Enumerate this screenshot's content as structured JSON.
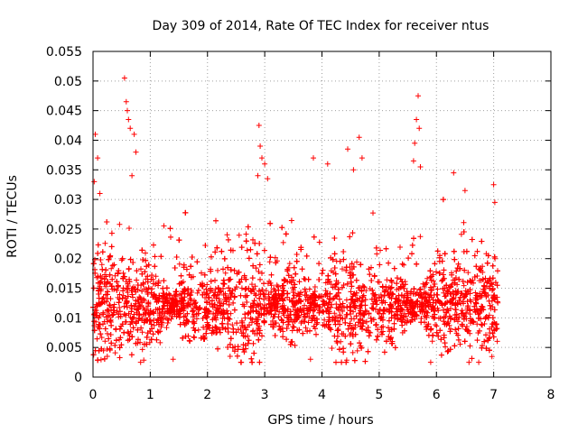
{
  "chart_data": {
    "type": "scatter",
    "title": "Day 309 of 2014, Rate Of TEC Index for receiver ntus",
    "xlabel": "GPS time / hours",
    "ylabel": "ROTI / TECUs",
    "xlim": [
      0,
      8
    ],
    "ylim": [
      0,
      0.055
    ],
    "xticks": [
      "0",
      "1",
      "2",
      "3",
      "4",
      "5",
      "6",
      "7",
      "8"
    ],
    "yticks": [
      "0",
      "0.005",
      "0.01",
      "0.015",
      "0.02",
      "0.025",
      "0.03",
      "0.035",
      "0.04",
      "0.045",
      "0.05",
      "0.055"
    ],
    "grid": true,
    "marker": "+",
    "color": "#ff0000",
    "series": [
      {
        "name": "ROTI",
        "x_range": [
          0,
          7.08
        ],
        "approx_points": 4500,
        "typical_range": [
          0.004,
          0.022
        ],
        "median": 0.012,
        "notable_points": [
          {
            "x": 0.02,
            "y": 0.033
          },
          {
            "x": 0.04,
            "y": 0.041
          },
          {
            "x": 0.08,
            "y": 0.037
          },
          {
            "x": 0.12,
            "y": 0.031
          },
          {
            "x": 0.55,
            "y": 0.0505
          },
          {
            "x": 0.58,
            "y": 0.0465
          },
          {
            "x": 0.6,
            "y": 0.045
          },
          {
            "x": 0.62,
            "y": 0.0435
          },
          {
            "x": 0.65,
            "y": 0.042
          },
          {
            "x": 0.72,
            "y": 0.041
          },
          {
            "x": 0.75,
            "y": 0.038
          },
          {
            "x": 0.68,
            "y": 0.034
          },
          {
            "x": 2.9,
            "y": 0.0425
          },
          {
            "x": 2.92,
            "y": 0.039
          },
          {
            "x": 2.95,
            "y": 0.037
          },
          {
            "x": 3.0,
            "y": 0.036
          },
          {
            "x": 2.88,
            "y": 0.034
          },
          {
            "x": 3.05,
            "y": 0.0335
          },
          {
            "x": 3.85,
            "y": 0.037
          },
          {
            "x": 4.1,
            "y": 0.036
          },
          {
            "x": 4.45,
            "y": 0.0385
          },
          {
            "x": 4.65,
            "y": 0.0405
          },
          {
            "x": 4.7,
            "y": 0.037
          },
          {
            "x": 4.55,
            "y": 0.035
          },
          {
            "x": 5.62,
            "y": 0.0395
          },
          {
            "x": 5.65,
            "y": 0.0435
          },
          {
            "x": 5.68,
            "y": 0.0475
          },
          {
            "x": 5.7,
            "y": 0.042
          },
          {
            "x": 5.6,
            "y": 0.0365
          },
          {
            "x": 5.72,
            "y": 0.0355
          },
          {
            "x": 6.3,
            "y": 0.0345
          },
          {
            "x": 6.5,
            "y": 0.0315
          },
          {
            "x": 7.0,
            "y": 0.0325
          },
          {
            "x": 7.02,
            "y": 0.0295
          },
          {
            "x": 1.4,
            "y": 0.003
          },
          {
            "x": 3.8,
            "y": 0.003
          },
          {
            "x": 5.9,
            "y": 0.0025
          },
          {
            "x": 0.25,
            "y": 0.0035
          }
        ]
      }
    ]
  }
}
